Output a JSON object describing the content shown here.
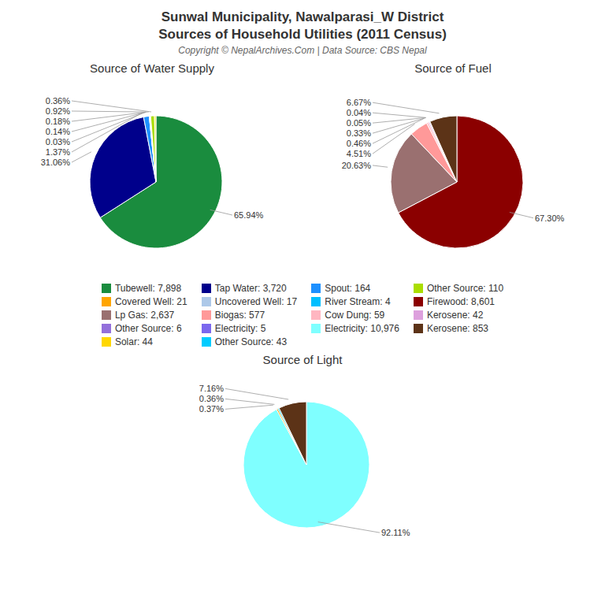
{
  "title": "Sunwal Municipality, Nawalparasi_W District",
  "subtitle": "Sources of Household Utilities (2011 Census)",
  "annotation": "Copyright © NepalArchives.Com | Data Source: CBS Nepal",
  "chart_data": [
    {
      "type": "pie",
      "title": "Source of Water Supply",
      "values": [
        65.94,
        31.06,
        1.37,
        0.03,
        0.14,
        0.18,
        0.92,
        0.36
      ],
      "value_labels": [
        "65.94%",
        "31.06%",
        "1.37%",
        "0.03%",
        "0.14%",
        "0.18%",
        "0.92%",
        "0.36%"
      ],
      "colors": [
        "#1a8c3e",
        "#00008b",
        "#1e90ff",
        "#00bfff",
        "#adc8e8",
        "#ffa500",
        "#aadd00",
        "#ffdd00"
      ],
      "data_labels": true
    },
    {
      "type": "pie",
      "title": "Source of Fuel",
      "values": [
        67.3,
        20.63,
        4.51,
        0.46,
        0.33,
        0.05,
        0.04,
        6.67
      ],
      "value_labels": [
        "67.30%",
        "20.63%",
        "4.51%",
        "0.46%",
        "0.33%",
        "0.05%",
        "0.04%",
        "6.67%"
      ],
      "colors": [
        "#8b0000",
        "#9a7070",
        "#ff9999",
        "#ffb6c1",
        "#dda0dd",
        "#aadd00",
        "#7b68ee",
        "#5c3317"
      ],
      "data_labels": true
    },
    {
      "type": "pie",
      "title": "Source of Light",
      "values": [
        92.11,
        0.37,
        0.36,
        7.16
      ],
      "value_labels": [
        "92.11%",
        "0.37%",
        "0.36%",
        "7.16%"
      ],
      "colors": [
        "#7fffff",
        "#ffa500",
        "#00ccff",
        "#5c3317"
      ],
      "data_labels": true
    }
  ],
  "legend_items": [
    {
      "name": "Tubewell: 7,898",
      "color": "#1a8c3e"
    },
    {
      "name": "Tap Water: 3,720",
      "color": "#00008b"
    },
    {
      "name": "Spout: 164",
      "color": "#1e90ff"
    },
    {
      "name": "Other Source: 110",
      "color": "#aadd00"
    },
    {
      "name": "Covered Well: 21",
      "color": "#ffa500"
    },
    {
      "name": "Uncovered Well: 17",
      "color": "#adc8e8"
    },
    {
      "name": "River Stream: 4",
      "color": "#00bfff"
    },
    {
      "name": "Firewood: 8,601",
      "color": "#8b0000"
    },
    {
      "name": "Lp Gas: 2,637",
      "color": "#9a7070"
    },
    {
      "name": "Biogas: 577",
      "color": "#ff9999"
    },
    {
      "name": "Cow Dung: 59",
      "color": "#ffb6c1"
    },
    {
      "name": "Kerosene: 42",
      "color": "#dda0dd"
    },
    {
      "name": "Other Source: 6",
      "color": "#9370db"
    },
    {
      "name": "Electricity: 5",
      "color": "#7b68ee"
    },
    {
      "name": "Electricity: 10,976",
      "color": "#7fffff"
    },
    {
      "name": "Kerosene: 853",
      "color": "#5c3317"
    },
    {
      "name": "Solar: 44",
      "color": "#ffd700"
    },
    {
      "name": "Other Source: 43",
      "color": "#00ccff"
    }
  ]
}
